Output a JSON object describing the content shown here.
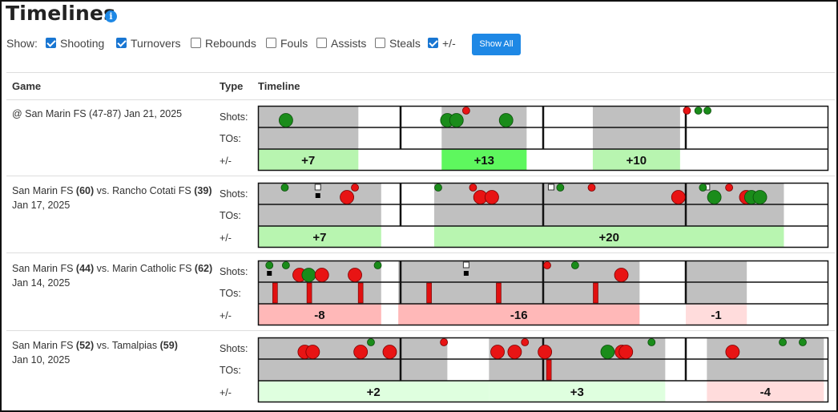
{
  "page": {
    "title": "Timelines"
  },
  "filters": {
    "show_label": "Show:",
    "options": [
      {
        "label": "Shooting",
        "checked": true
      },
      {
        "label": "Turnovers",
        "checked": true
      },
      {
        "label": "Rebounds",
        "checked": false
      },
      {
        "label": "Fouls",
        "checked": false
      },
      {
        "label": "Assists",
        "checked": false
      },
      {
        "label": "Steals",
        "checked": false
      },
      {
        "label": "+/-",
        "checked": true
      }
    ],
    "show_all_label": "Show All"
  },
  "table": {
    "headers": {
      "game": "Game",
      "type": "Type",
      "timeline": "Timeline"
    }
  },
  "row_labels": {
    "shots": "Shots:",
    "tos": "TOs:",
    "pm": "+/-"
  },
  "colors": {
    "made": "#1a8c1a",
    "missed": "#e81414",
    "turnover": "#e01010",
    "played": "#c0c0c0",
    "pm_plus_strong": "#5ef75e",
    "pm_plus": "#b8f5b0",
    "pm_plus_light": "#dfffdf",
    "pm_minus": "#ffb8b8",
    "pm_minus_light": "#ffdcdc"
  },
  "games": [
    {
      "game": "@ San Marin FS (47-87)",
      "date": "Jan 21, 2025",
      "team": null,
      "team_score": null,
      "opponent": null,
      "opponent_score": null,
      "versus": null,
      "period_breaks": [
        0.25,
        0.5,
        0.75
      ],
      "played": [
        [
          0.0,
          0.176
        ],
        [
          0.322,
          0.471
        ],
        [
          0.587,
          0.74
        ]
      ],
      "shots": [
        {
          "t": 0.049,
          "made": true,
          "size": "large"
        },
        {
          "t": 0.332,
          "made": true,
          "size": "large"
        },
        {
          "t": 0.348,
          "made": true,
          "size": "large"
        },
        {
          "t": 0.365,
          "made": false,
          "size": "small"
        },
        {
          "t": 0.435,
          "made": true,
          "size": "large"
        },
        {
          "t": 0.752,
          "made": false,
          "size": "small"
        },
        {
          "t": 0.772,
          "made": true,
          "size": "small"
        },
        {
          "t": 0.788,
          "made": true,
          "size": "small"
        }
      ],
      "turnovers": [],
      "assists": [],
      "plus_minus": [
        {
          "start": 0.0,
          "end": 0.176,
          "value": "+7",
          "shade": "pm_plus"
        },
        {
          "start": 0.322,
          "end": 0.471,
          "value": "+13",
          "shade": "pm_plus_strong"
        },
        {
          "start": 0.587,
          "end": 0.74,
          "value": "+10",
          "shade": "pm_plus"
        }
      ]
    },
    {
      "game": null,
      "date": "Jan 17, 2025",
      "team": "San Marin FS",
      "team_score": "(60)",
      "opponent": "Rancho Cotati FS",
      "opponent_score": "(39)",
      "versus": "vs.",
      "period_breaks": [
        0.25,
        0.5,
        0.75
      ],
      "played": [
        [
          0.0,
          0.216
        ],
        [
          0.309,
          0.922
        ]
      ],
      "shots": [
        {
          "t": 0.047,
          "made": true,
          "size": "small"
        },
        {
          "t": 0.156,
          "made": false,
          "size": "large"
        },
        {
          "t": 0.17,
          "made": false,
          "size": "small"
        },
        {
          "t": 0.316,
          "made": true,
          "size": "small"
        },
        {
          "t": 0.377,
          "made": false,
          "size": "small"
        },
        {
          "t": 0.39,
          "made": false,
          "size": "large"
        },
        {
          "t": 0.41,
          "made": false,
          "size": "large"
        },
        {
          "t": 0.53,
          "made": true,
          "size": "small"
        },
        {
          "t": 0.585,
          "made": false,
          "size": "small"
        },
        {
          "t": 0.737,
          "made": false,
          "size": "large"
        },
        {
          "t": 0.78,
          "made": true,
          "size": "small"
        },
        {
          "t": 0.8,
          "made": true,
          "size": "large"
        },
        {
          "t": 0.826,
          "made": false,
          "size": "small"
        },
        {
          "t": 0.856,
          "made": false,
          "size": "large"
        },
        {
          "t": 0.865,
          "made": true,
          "size": "large"
        },
        {
          "t": 0.88,
          "made": true,
          "size": "large"
        }
      ],
      "turnovers": [],
      "assists": [
        {
          "t": 0.105,
          "kind": "assist"
        },
        {
          "t": 0.105,
          "kind": "assisted"
        },
        {
          "t": 0.514,
          "kind": "assist"
        },
        {
          "t": 0.514,
          "kind": "assist"
        },
        {
          "t": 0.787,
          "kind": "assist"
        }
      ],
      "plus_minus": [
        {
          "start": 0.0,
          "end": 0.216,
          "value": "+7",
          "shade": "pm_plus"
        },
        {
          "start": 0.309,
          "end": 0.922,
          "value": "+20",
          "shade": "pm_plus"
        }
      ]
    },
    {
      "game": null,
      "date": "Jan 14, 2025",
      "team": "San Marin FS",
      "team_score": "(44)",
      "opponent": "Marin Catholic FS",
      "opponent_score": "(62)",
      "versus": "vs.",
      "period_breaks": [
        0.25,
        0.5,
        0.75
      ],
      "played": [
        [
          0.0,
          0.216
        ],
        [
          0.246,
          0.669
        ],
        [
          0.75,
          0.857
        ]
      ],
      "shots": [
        {
          "t": 0.02,
          "made": true,
          "size": "small"
        },
        {
          "t": 0.049,
          "made": true,
          "size": "small"
        },
        {
          "t": 0.073,
          "made": false,
          "size": "large"
        },
        {
          "t": 0.089,
          "made": true,
          "size": "large"
        },
        {
          "t": 0.112,
          "made": false,
          "size": "large"
        },
        {
          "t": 0.17,
          "made": false,
          "size": "large"
        },
        {
          "t": 0.21,
          "made": true,
          "size": "small"
        },
        {
          "t": 0.507,
          "made": false,
          "size": "small"
        },
        {
          "t": 0.556,
          "made": true,
          "size": "small"
        },
        {
          "t": 0.637,
          "made": false,
          "size": "large"
        }
      ],
      "turnovers": [
        0.03,
        0.09,
        0.18,
        0.3,
        0.422,
        0.592
      ],
      "assists": [
        {
          "t": 0.02,
          "kind": "assisted"
        },
        {
          "t": 0.365,
          "kind": "assist"
        },
        {
          "t": 0.365,
          "kind": "assisted"
        }
      ],
      "plus_minus": [
        {
          "start": 0.0,
          "end": 0.216,
          "value": "-8",
          "shade": "pm_minus"
        },
        {
          "start": 0.246,
          "end": 0.669,
          "value": "-16",
          "shade": "pm_minus"
        },
        {
          "start": 0.75,
          "end": 0.857,
          "value": "-1",
          "shade": "pm_minus_light"
        }
      ]
    },
    {
      "game": null,
      "date": "Jan 10, 2025",
      "team": "San Marin FS",
      "team_score": "(52)",
      "opponent": "Tamalpias",
      "opponent_score": "(59)",
      "versus": "vs.",
      "period_breaks": [
        0.25,
        0.5,
        0.75
      ],
      "played": [
        [
          0.0,
          0.332
        ],
        [
          0.405,
          0.714
        ],
        [
          0.787,
          0.992
        ]
      ],
      "shots": [
        {
          "t": 0.082,
          "made": false,
          "size": "large"
        },
        {
          "t": 0.096,
          "made": false,
          "size": "large"
        },
        {
          "t": 0.18,
          "made": false,
          "size": "large"
        },
        {
          "t": 0.198,
          "made": true,
          "size": "small"
        },
        {
          "t": 0.231,
          "made": false,
          "size": "large"
        },
        {
          "t": 0.326,
          "made": false,
          "size": "small"
        },
        {
          "t": 0.42,
          "made": false,
          "size": "large"
        },
        {
          "t": 0.45,
          "made": false,
          "size": "large"
        },
        {
          "t": 0.468,
          "made": false,
          "size": "small"
        },
        {
          "t": 0.503,
          "made": false,
          "size": "large"
        },
        {
          "t": 0.613,
          "made": true,
          "size": "large"
        },
        {
          "t": 0.638,
          "made": false,
          "size": "large"
        },
        {
          "t": 0.645,
          "made": false,
          "size": "large"
        },
        {
          "t": 0.69,
          "made": true,
          "size": "small"
        },
        {
          "t": 0.832,
          "made": false,
          "size": "large"
        },
        {
          "t": 0.92,
          "made": true,
          "size": "small"
        },
        {
          "t": 0.955,
          "made": true,
          "size": "small"
        }
      ],
      "turnovers": [
        0.51
      ],
      "assists": [],
      "plus_minus": [
        {
          "start": 0.0,
          "end": 0.405,
          "value": "+2",
          "shade": "pm_plus_light"
        },
        {
          "start": 0.405,
          "end": 0.714,
          "value": "+3",
          "shade": "pm_plus_light"
        },
        {
          "start": 0.787,
          "end": 0.992,
          "value": "-4",
          "shade": "pm_minus_light"
        }
      ]
    }
  ]
}
